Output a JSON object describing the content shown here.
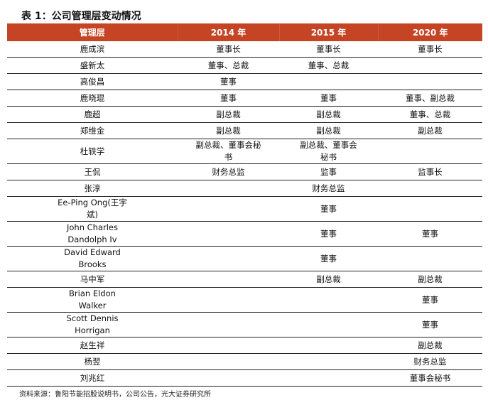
{
  "title": "表 1：公司管理层变动情况",
  "headers": [
    "管理层",
    "2014 年",
    "2015 年",
    "2020 年"
  ],
  "rows": [
    [
      "鹿成滨",
      "董事长",
      "董事长",
      "董事长"
    ],
    [
      "盛新太",
      "董事、总裁",
      "董事、总裁",
      ""
    ],
    [
      "高俊昌",
      "董事",
      "",
      ""
    ],
    [
      "鹿晓琨",
      "董事",
      "董事",
      "董事、副总裁"
    ],
    [
      "鹿超",
      "副总裁",
      "副总裁",
      "董事、总裁"
    ],
    [
      "郑维金",
      "副总裁",
      "副总裁",
      "副总裁"
    ],
    [
      "杜轶学",
      "副总裁、董事会秘书",
      "副总裁、董事会秘书",
      ""
    ],
    [
      "王侃",
      "财务总监",
      "监事",
      "监事长"
    ],
    [
      "张淳",
      "",
      "财务总监",
      ""
    ],
    [
      "Ee-Ping Ong(王宇斌)",
      "",
      "董事",
      ""
    ],
    [
      "John Charles Dandolph Iv",
      "",
      "董事",
      "董事"
    ],
    [
      "David Edward Brooks",
      "",
      "董事",
      ""
    ],
    [
      "马中军",
      "",
      "副总裁",
      "副总裁"
    ],
    [
      "Brian Eldon Walker",
      "",
      "",
      "董事"
    ],
    [
      "Scott Dennis Horrigan",
      "",
      "",
      "董事"
    ],
    [
      "赵生祥",
      "",
      "",
      "副总裁"
    ],
    [
      "杨翌",
      "",
      "",
      "财务总监"
    ],
    [
      "刘兆红",
      "",
      "",
      "董事会秘书"
    ]
  ],
  "source": "资料来源：鲁阳节能招股说明书，公司公告，光大证券研究所"
}
